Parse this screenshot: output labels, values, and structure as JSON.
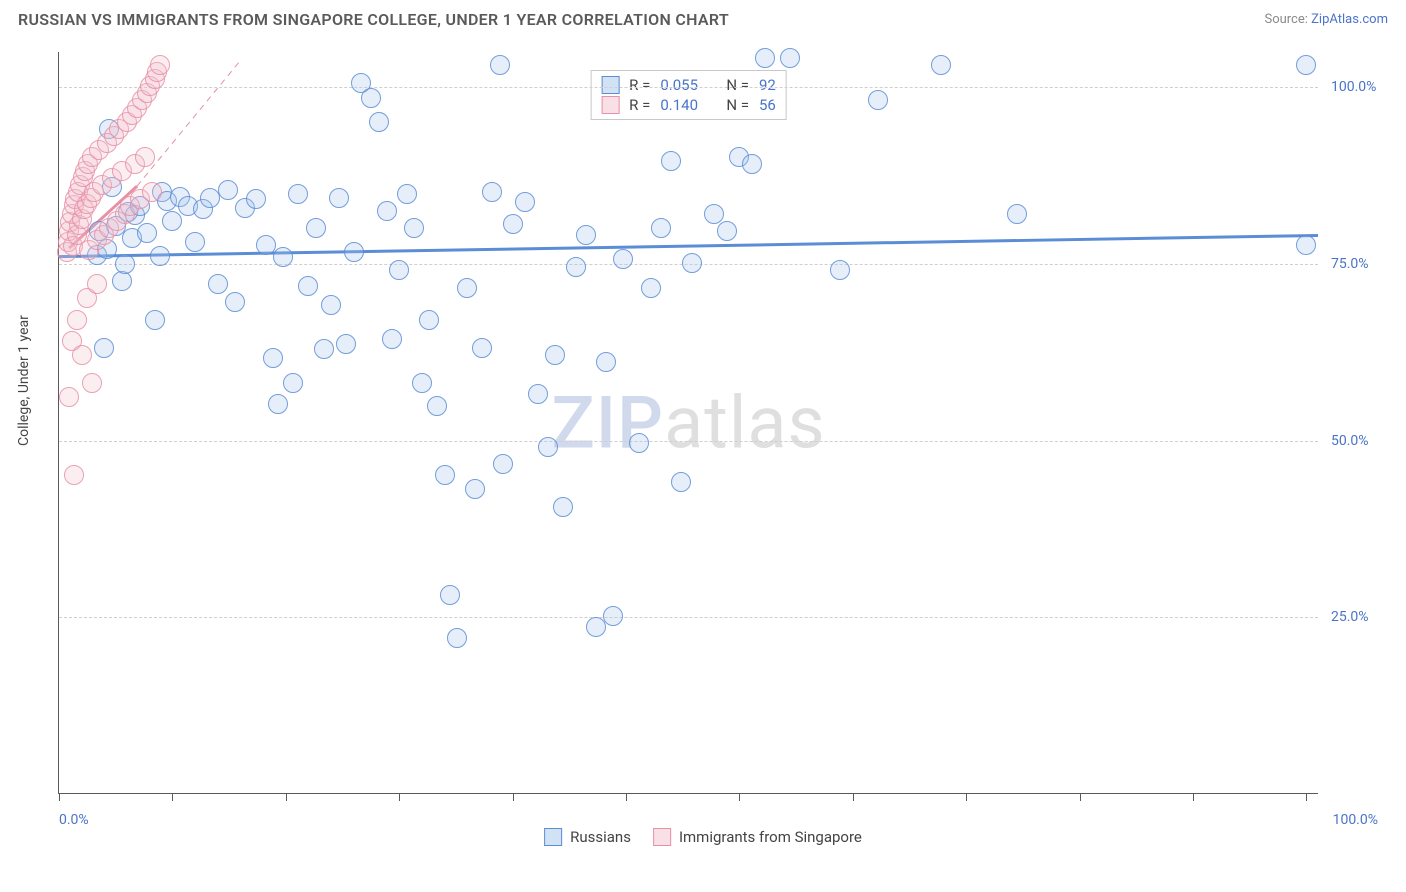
{
  "header": {
    "title": "RUSSIAN VS IMMIGRANTS FROM SINGAPORE COLLEGE, UNDER 1 YEAR CORRELATION CHART",
    "source_prefix": "Source: ",
    "source_link": "ZipAtlas.com"
  },
  "chart": {
    "type": "scatter",
    "background_color": "#ffffff",
    "grid_color": "#cfcfcf",
    "axis_color": "#5a5a5a",
    "tick_label_color": "#4a74c9",
    "xlim": [
      0,
      100
    ],
    "ylim": [
      0,
      105
    ],
    "y_ticks": [
      25,
      50,
      75,
      100
    ],
    "y_tick_labels": [
      "25.0%",
      "50.0%",
      "75.0%",
      "100.0%"
    ],
    "x_tick_positions": [
      0,
      9,
      18,
      27,
      36,
      45,
      54,
      63,
      72,
      81,
      90,
      99
    ],
    "x_min_label": "0.0%",
    "x_max_label": "100.0%",
    "y_axis_title": "College, Under 1 year",
    "marker_radius": 10,
    "marker_border_width": 1.2,
    "marker_fill_opacity": 0.32,
    "series": [
      {
        "name": "Russians",
        "color_border": "#5b8dd6",
        "color_fill": "#a6c5ec",
        "R": "0.055",
        "N": "92",
        "trend": {
          "style": "solid",
          "width": 3,
          "x1": 0,
          "y1": 76.0,
          "x2": 100,
          "y2": 79.0
        },
        "points": [
          [
            3.0,
            76.2
          ],
          [
            3.2,
            79.6
          ],
          [
            3.6,
            63.0
          ],
          [
            3.8,
            77.0
          ],
          [
            4.0,
            94.0
          ],
          [
            4.2,
            85.8
          ],
          [
            4.5,
            80.2
          ],
          [
            5.0,
            72.5
          ],
          [
            5.2,
            74.8
          ],
          [
            5.5,
            82.2
          ],
          [
            5.8,
            78.5
          ],
          [
            6.0,
            81.8
          ],
          [
            6.4,
            83.0
          ],
          [
            7.0,
            79.2
          ],
          [
            7.6,
            67.0
          ],
          [
            8.0,
            76.0
          ],
          [
            8.2,
            85.0
          ],
          [
            8.6,
            83.8
          ],
          [
            9.0,
            81.0
          ],
          [
            9.6,
            84.4
          ],
          [
            10.2,
            83.0
          ],
          [
            10.8,
            78.0
          ],
          [
            11.4,
            82.6
          ],
          [
            12.0,
            84.2
          ],
          [
            12.6,
            72.0
          ],
          [
            13.4,
            85.4
          ],
          [
            14.0,
            69.5
          ],
          [
            14.8,
            82.8
          ],
          [
            15.6,
            84.0
          ],
          [
            16.4,
            77.5
          ],
          [
            17.0,
            61.5
          ],
          [
            17.4,
            55.0
          ],
          [
            17.8,
            75.8
          ],
          [
            18.6,
            58.0
          ],
          [
            19.0,
            84.8
          ],
          [
            19.8,
            71.8
          ],
          [
            20.4,
            80.0
          ],
          [
            21.0,
            62.8
          ],
          [
            21.6,
            69.0
          ],
          [
            22.2,
            84.2
          ],
          [
            22.8,
            63.5
          ],
          [
            23.4,
            76.5
          ],
          [
            24.0,
            100.5
          ],
          [
            24.8,
            98.4
          ],
          [
            25.4,
            95.0
          ],
          [
            26.0,
            82.4
          ],
          [
            26.4,
            64.2
          ],
          [
            27.0,
            74.0
          ],
          [
            27.6,
            84.8
          ],
          [
            28.2,
            80.0
          ],
          [
            28.8,
            58.0
          ],
          [
            29.4,
            67.0
          ],
          [
            30.0,
            54.8
          ],
          [
            30.6,
            45.0
          ],
          [
            31.0,
            28.0
          ],
          [
            31.6,
            22.0
          ],
          [
            32.4,
            71.5
          ],
          [
            33.0,
            43.0
          ],
          [
            33.6,
            63.0
          ],
          [
            34.4,
            85.0
          ],
          [
            35.0,
            103.0
          ],
          [
            35.2,
            46.5
          ],
          [
            36.0,
            80.5
          ],
          [
            37.0,
            83.6
          ],
          [
            38.0,
            56.5
          ],
          [
            38.8,
            49.0
          ],
          [
            39.4,
            62.0
          ],
          [
            40.0,
            40.5
          ],
          [
            41.0,
            74.5
          ],
          [
            41.8,
            79.0
          ],
          [
            42.6,
            23.5
          ],
          [
            43.4,
            61.0
          ],
          [
            44.0,
            25.0
          ],
          [
            44.8,
            75.5
          ],
          [
            46.0,
            49.5
          ],
          [
            47.0,
            71.5
          ],
          [
            47.8,
            80.0
          ],
          [
            48.6,
            89.5
          ],
          [
            49.4,
            44.0
          ],
          [
            50.2,
            75.0
          ],
          [
            52.0,
            82.0
          ],
          [
            53.0,
            79.5
          ],
          [
            54.0,
            90.0
          ],
          [
            55.0,
            89.0
          ],
          [
            56.0,
            104.0
          ],
          [
            58.0,
            104.0
          ],
          [
            62.0,
            74.0
          ],
          [
            65.0,
            98.0
          ],
          [
            70.0,
            103.0
          ],
          [
            76.0,
            82.0
          ],
          [
            99.0,
            103.0
          ],
          [
            99.0,
            77.5
          ]
        ]
      },
      {
        "name": "Immigrants from Singapore",
        "color_border": "#e890a6",
        "color_fill": "#f4c1ce",
        "R": "0.140",
        "N": "56",
        "trend": {
          "style": "solid",
          "width": 3,
          "x1": 0.8,
          "y1": 77.2,
          "x2": 6.2,
          "y2": 86.0
        },
        "trend_extrap": {
          "style": "dashed",
          "width": 1,
          "x1": 6.2,
          "y1": 86.0,
          "x2": 14.5,
          "y2": 104.0
        },
        "points": [
          [
            0.6,
            76.5
          ],
          [
            0.7,
            78.0
          ],
          [
            0.8,
            79.5
          ],
          [
            0.9,
            80.8
          ],
          [
            1.0,
            82.0
          ],
          [
            1.1,
            77.4
          ],
          [
            1.2,
            83.2
          ],
          [
            1.3,
            84.0
          ],
          [
            1.4,
            79.0
          ],
          [
            1.5,
            85.0
          ],
          [
            1.6,
            80.4
          ],
          [
            1.7,
            86.0
          ],
          [
            1.8,
            81.2
          ],
          [
            1.9,
            87.2
          ],
          [
            2.0,
            82.6
          ],
          [
            2.1,
            88.0
          ],
          [
            2.2,
            83.4
          ],
          [
            2.3,
            89.0
          ],
          [
            2.4,
            76.8
          ],
          [
            2.5,
            84.2
          ],
          [
            2.6,
            90.0
          ],
          [
            2.8,
            85.0
          ],
          [
            3.0,
            78.2
          ],
          [
            3.2,
            91.0
          ],
          [
            3.4,
            86.0
          ],
          [
            3.6,
            79.0
          ],
          [
            3.8,
            92.0
          ],
          [
            4.0,
            80.0
          ],
          [
            4.2,
            87.0
          ],
          [
            4.4,
            93.0
          ],
          [
            4.6,
            81.0
          ],
          [
            4.8,
            94.0
          ],
          [
            5.0,
            88.0
          ],
          [
            5.2,
            82.0
          ],
          [
            5.4,
            95.0
          ],
          [
            5.6,
            83.0
          ],
          [
            5.8,
            96.0
          ],
          [
            6.0,
            89.0
          ],
          [
            6.2,
            97.0
          ],
          [
            6.4,
            84.0
          ],
          [
            6.6,
            98.0
          ],
          [
            6.8,
            90.0
          ],
          [
            7.0,
            99.0
          ],
          [
            7.2,
            100.0
          ],
          [
            7.4,
            85.0
          ],
          [
            7.6,
            101.0
          ],
          [
            7.8,
            102.0
          ],
          [
            8.0,
            103.0
          ],
          [
            1.0,
            64.0
          ],
          [
            1.4,
            67.0
          ],
          [
            1.8,
            62.0
          ],
          [
            2.2,
            70.0
          ],
          [
            2.6,
            58.0
          ],
          [
            3.0,
            72.0
          ],
          [
            0.8,
            56.0
          ],
          [
            1.2,
            45.0
          ]
        ]
      }
    ],
    "legend_bottom": [
      {
        "label": "Russians",
        "fill": "#a6c5ec",
        "border": "#5b8dd6"
      },
      {
        "label": "Immigrants from Singapore",
        "fill": "#f4c1ce",
        "border": "#e890a6"
      }
    ],
    "watermark": {
      "z": "ZIP",
      "rest": "atlas"
    }
  }
}
